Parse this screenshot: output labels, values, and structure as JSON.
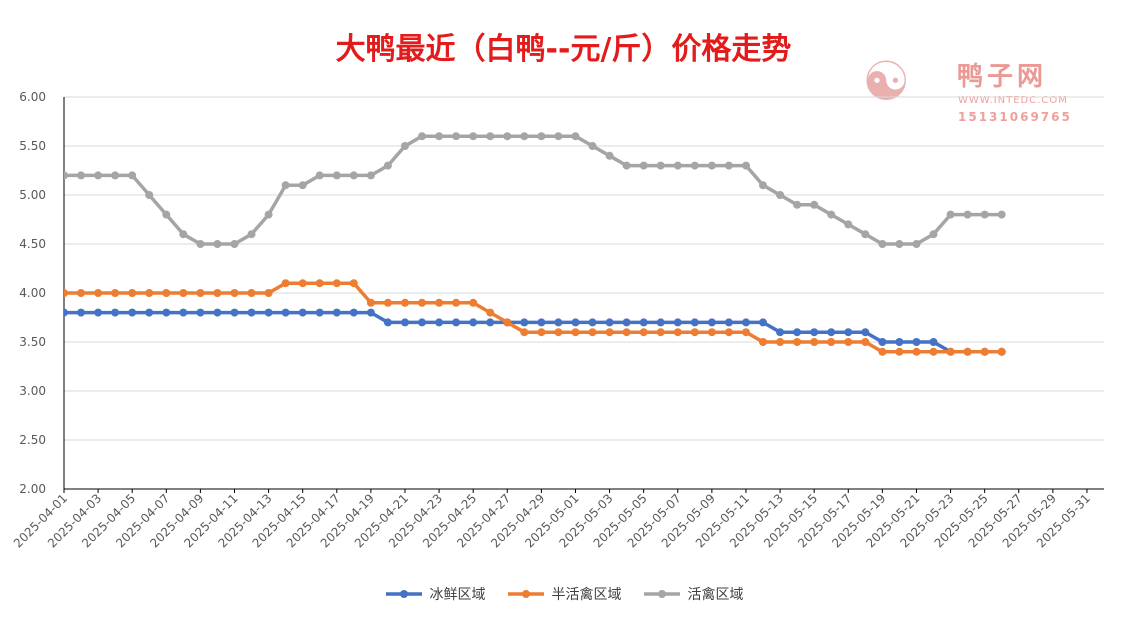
{
  "chart_data": {
    "type": "line",
    "title": "大鸭最近（白鸭--元/斤）价格走势",
    "xlabel": "",
    "ylabel": "",
    "ylim": [
      2.0,
      6.0
    ],
    "y_ticks": [
      "6.00",
      "5.50",
      "5.00",
      "4.50",
      "4.00",
      "3.50",
      "3.00",
      "2.50",
      "2.00"
    ],
    "x_tick_labels": [
      "2025-04-01",
      "2025-04-03",
      "2025-04-05",
      "2025-04-07",
      "2025-04-09",
      "2025-04-11",
      "2025-04-13",
      "2025-04-15",
      "2025-04-17",
      "2025-04-19",
      "2025-04-21",
      "2025-04-23",
      "2025-04-25",
      "2025-04-27",
      "2025-04-29",
      "2025-05-01",
      "2025-05-03",
      "2025-05-05",
      "2025-05-07",
      "2025-05-09",
      "2025-05-11",
      "2025-05-13",
      "2025-05-15",
      "2025-05-17",
      "2025-05-19",
      "2025-05-21",
      "2025-05-23",
      "2025-05-25",
      "2025-05-27",
      "2025-05-29",
      "2025-05-31"
    ],
    "x_range": [
      "2025-04-01",
      "2025-05-31"
    ],
    "grid": true,
    "legend_position": "bottom",
    "series": [
      {
        "name": "冰鲜区域",
        "color": "#4472c4",
        "x": [
          "2025-03-31",
          "2025-04-01",
          "2025-04-02",
          "2025-04-03",
          "2025-04-04",
          "2025-04-05",
          "2025-04-06",
          "2025-04-07",
          "2025-04-08",
          "2025-04-09",
          "2025-04-10",
          "2025-04-11",
          "2025-04-12",
          "2025-04-13",
          "2025-04-14",
          "2025-04-15",
          "2025-04-16",
          "2025-04-17",
          "2025-04-18",
          "2025-04-19",
          "2025-04-20",
          "2025-04-21",
          "2025-04-22",
          "2025-04-23",
          "2025-04-24",
          "2025-04-25",
          "2025-04-26",
          "2025-04-27",
          "2025-04-28",
          "2025-04-29",
          "2025-04-30",
          "2025-05-01",
          "2025-05-02",
          "2025-05-03",
          "2025-05-04",
          "2025-05-05",
          "2025-05-06",
          "2025-05-07",
          "2025-05-08",
          "2025-05-09",
          "2025-05-10",
          "2025-05-11",
          "2025-05-12",
          "2025-05-13",
          "2025-05-14",
          "2025-05-15",
          "2025-05-16",
          "2025-05-17",
          "2025-05-18",
          "2025-05-19",
          "2025-05-20",
          "2025-05-21",
          "2025-05-22",
          "2025-05-23",
          "2025-05-24",
          "2025-05-25",
          "2025-05-26"
        ],
        "values": [
          3.8,
          3.8,
          3.8,
          3.8,
          3.8,
          3.8,
          3.8,
          3.8,
          3.8,
          3.8,
          3.8,
          3.8,
          3.8,
          3.8,
          3.8,
          3.8,
          3.8,
          3.8,
          3.8,
          3.8,
          3.7,
          3.7,
          3.7,
          3.7,
          3.7,
          3.7,
          3.7,
          3.7,
          3.7,
          3.7,
          3.7,
          3.7,
          3.7,
          3.7,
          3.7,
          3.7,
          3.7,
          3.7,
          3.7,
          3.7,
          3.7,
          3.7,
          3.7,
          3.6,
          3.6,
          3.6,
          3.6,
          3.6,
          3.6,
          3.5,
          3.5,
          3.5,
          3.5,
          3.4,
          3.4,
          3.4,
          3.4
        ]
      },
      {
        "name": "半活禽区域",
        "color": "#ed7d31",
        "x": [
          "2025-03-31",
          "2025-04-01",
          "2025-04-02",
          "2025-04-03",
          "2025-04-04",
          "2025-04-05",
          "2025-04-06",
          "2025-04-07",
          "2025-04-08",
          "2025-04-09",
          "2025-04-10",
          "2025-04-11",
          "2025-04-12",
          "2025-04-13",
          "2025-04-14",
          "2025-04-15",
          "2025-04-16",
          "2025-04-17",
          "2025-04-18",
          "2025-04-19",
          "2025-04-20",
          "2025-04-21",
          "2025-04-22",
          "2025-04-23",
          "2025-04-24",
          "2025-04-25",
          "2025-04-26",
          "2025-04-27",
          "2025-04-28",
          "2025-04-29",
          "2025-04-30",
          "2025-05-01",
          "2025-05-02",
          "2025-05-03",
          "2025-05-04",
          "2025-05-05",
          "2025-05-06",
          "2025-05-07",
          "2025-05-08",
          "2025-05-09",
          "2025-05-10",
          "2025-05-11",
          "2025-05-12",
          "2025-05-13",
          "2025-05-14",
          "2025-05-15",
          "2025-05-16",
          "2025-05-17",
          "2025-05-18",
          "2025-05-19",
          "2025-05-20",
          "2025-05-21",
          "2025-05-22",
          "2025-05-23",
          "2025-05-24",
          "2025-05-25",
          "2025-05-26"
        ],
        "values": [
          3.95,
          4.0,
          4.0,
          4.0,
          4.0,
          4.0,
          4.0,
          4.0,
          4.0,
          4.0,
          4.0,
          4.0,
          4.0,
          4.0,
          4.1,
          4.1,
          4.1,
          4.1,
          4.1,
          3.9,
          3.9,
          3.9,
          3.9,
          3.9,
          3.9,
          3.9,
          3.8,
          3.7,
          3.6,
          3.6,
          3.6,
          3.6,
          3.6,
          3.6,
          3.6,
          3.6,
          3.6,
          3.6,
          3.6,
          3.6,
          3.6,
          3.6,
          3.5,
          3.5,
          3.5,
          3.5,
          3.5,
          3.5,
          3.5,
          3.4,
          3.4,
          3.4,
          3.4,
          3.4,
          3.4,
          3.4,
          3.4
        ]
      },
      {
        "name": "活禽区域",
        "color": "#a5a5a5",
        "x": [
          "2025-03-31",
          "2025-04-01",
          "2025-04-02",
          "2025-04-03",
          "2025-04-04",
          "2025-04-05",
          "2025-04-06",
          "2025-04-07",
          "2025-04-08",
          "2025-04-09",
          "2025-04-10",
          "2025-04-11",
          "2025-04-12",
          "2025-04-13",
          "2025-04-14",
          "2025-04-15",
          "2025-04-16",
          "2025-04-17",
          "2025-04-18",
          "2025-04-19",
          "2025-04-20",
          "2025-04-21",
          "2025-04-22",
          "2025-04-23",
          "2025-04-24",
          "2025-04-25",
          "2025-04-26",
          "2025-04-27",
          "2025-04-28",
          "2025-04-29",
          "2025-04-30",
          "2025-05-01",
          "2025-05-02",
          "2025-05-03",
          "2025-05-04",
          "2025-05-05",
          "2025-05-06",
          "2025-05-07",
          "2025-05-08",
          "2025-05-09",
          "2025-05-10",
          "2025-05-11",
          "2025-05-12",
          "2025-05-13",
          "2025-05-14",
          "2025-05-15",
          "2025-05-16",
          "2025-05-17",
          "2025-05-18",
          "2025-05-19",
          "2025-05-20",
          "2025-05-21",
          "2025-05-22",
          "2025-05-23",
          "2025-05-24",
          "2025-05-25",
          "2025-05-26"
        ],
        "values": [
          5.1,
          5.2,
          5.2,
          5.2,
          5.2,
          5.2,
          5.0,
          4.8,
          4.6,
          4.5,
          4.5,
          4.5,
          4.6,
          4.8,
          5.1,
          5.1,
          5.2,
          5.2,
          5.2,
          5.2,
          5.3,
          5.5,
          5.6,
          5.6,
          5.6,
          5.6,
          5.6,
          5.6,
          5.6,
          5.6,
          5.6,
          5.6,
          5.5,
          5.4,
          5.3,
          5.3,
          5.3,
          5.3,
          5.3,
          5.3,
          5.3,
          5.3,
          5.1,
          5.0,
          4.9,
          4.9,
          4.8,
          4.7,
          4.6,
          4.5,
          4.5,
          4.5,
          4.6,
          4.8,
          4.8,
          4.8,
          4.8
        ]
      }
    ]
  },
  "watermark": {
    "brand": "鸭子网",
    "site": "WWW.INTEDC.COM",
    "phone": "15131069765"
  }
}
